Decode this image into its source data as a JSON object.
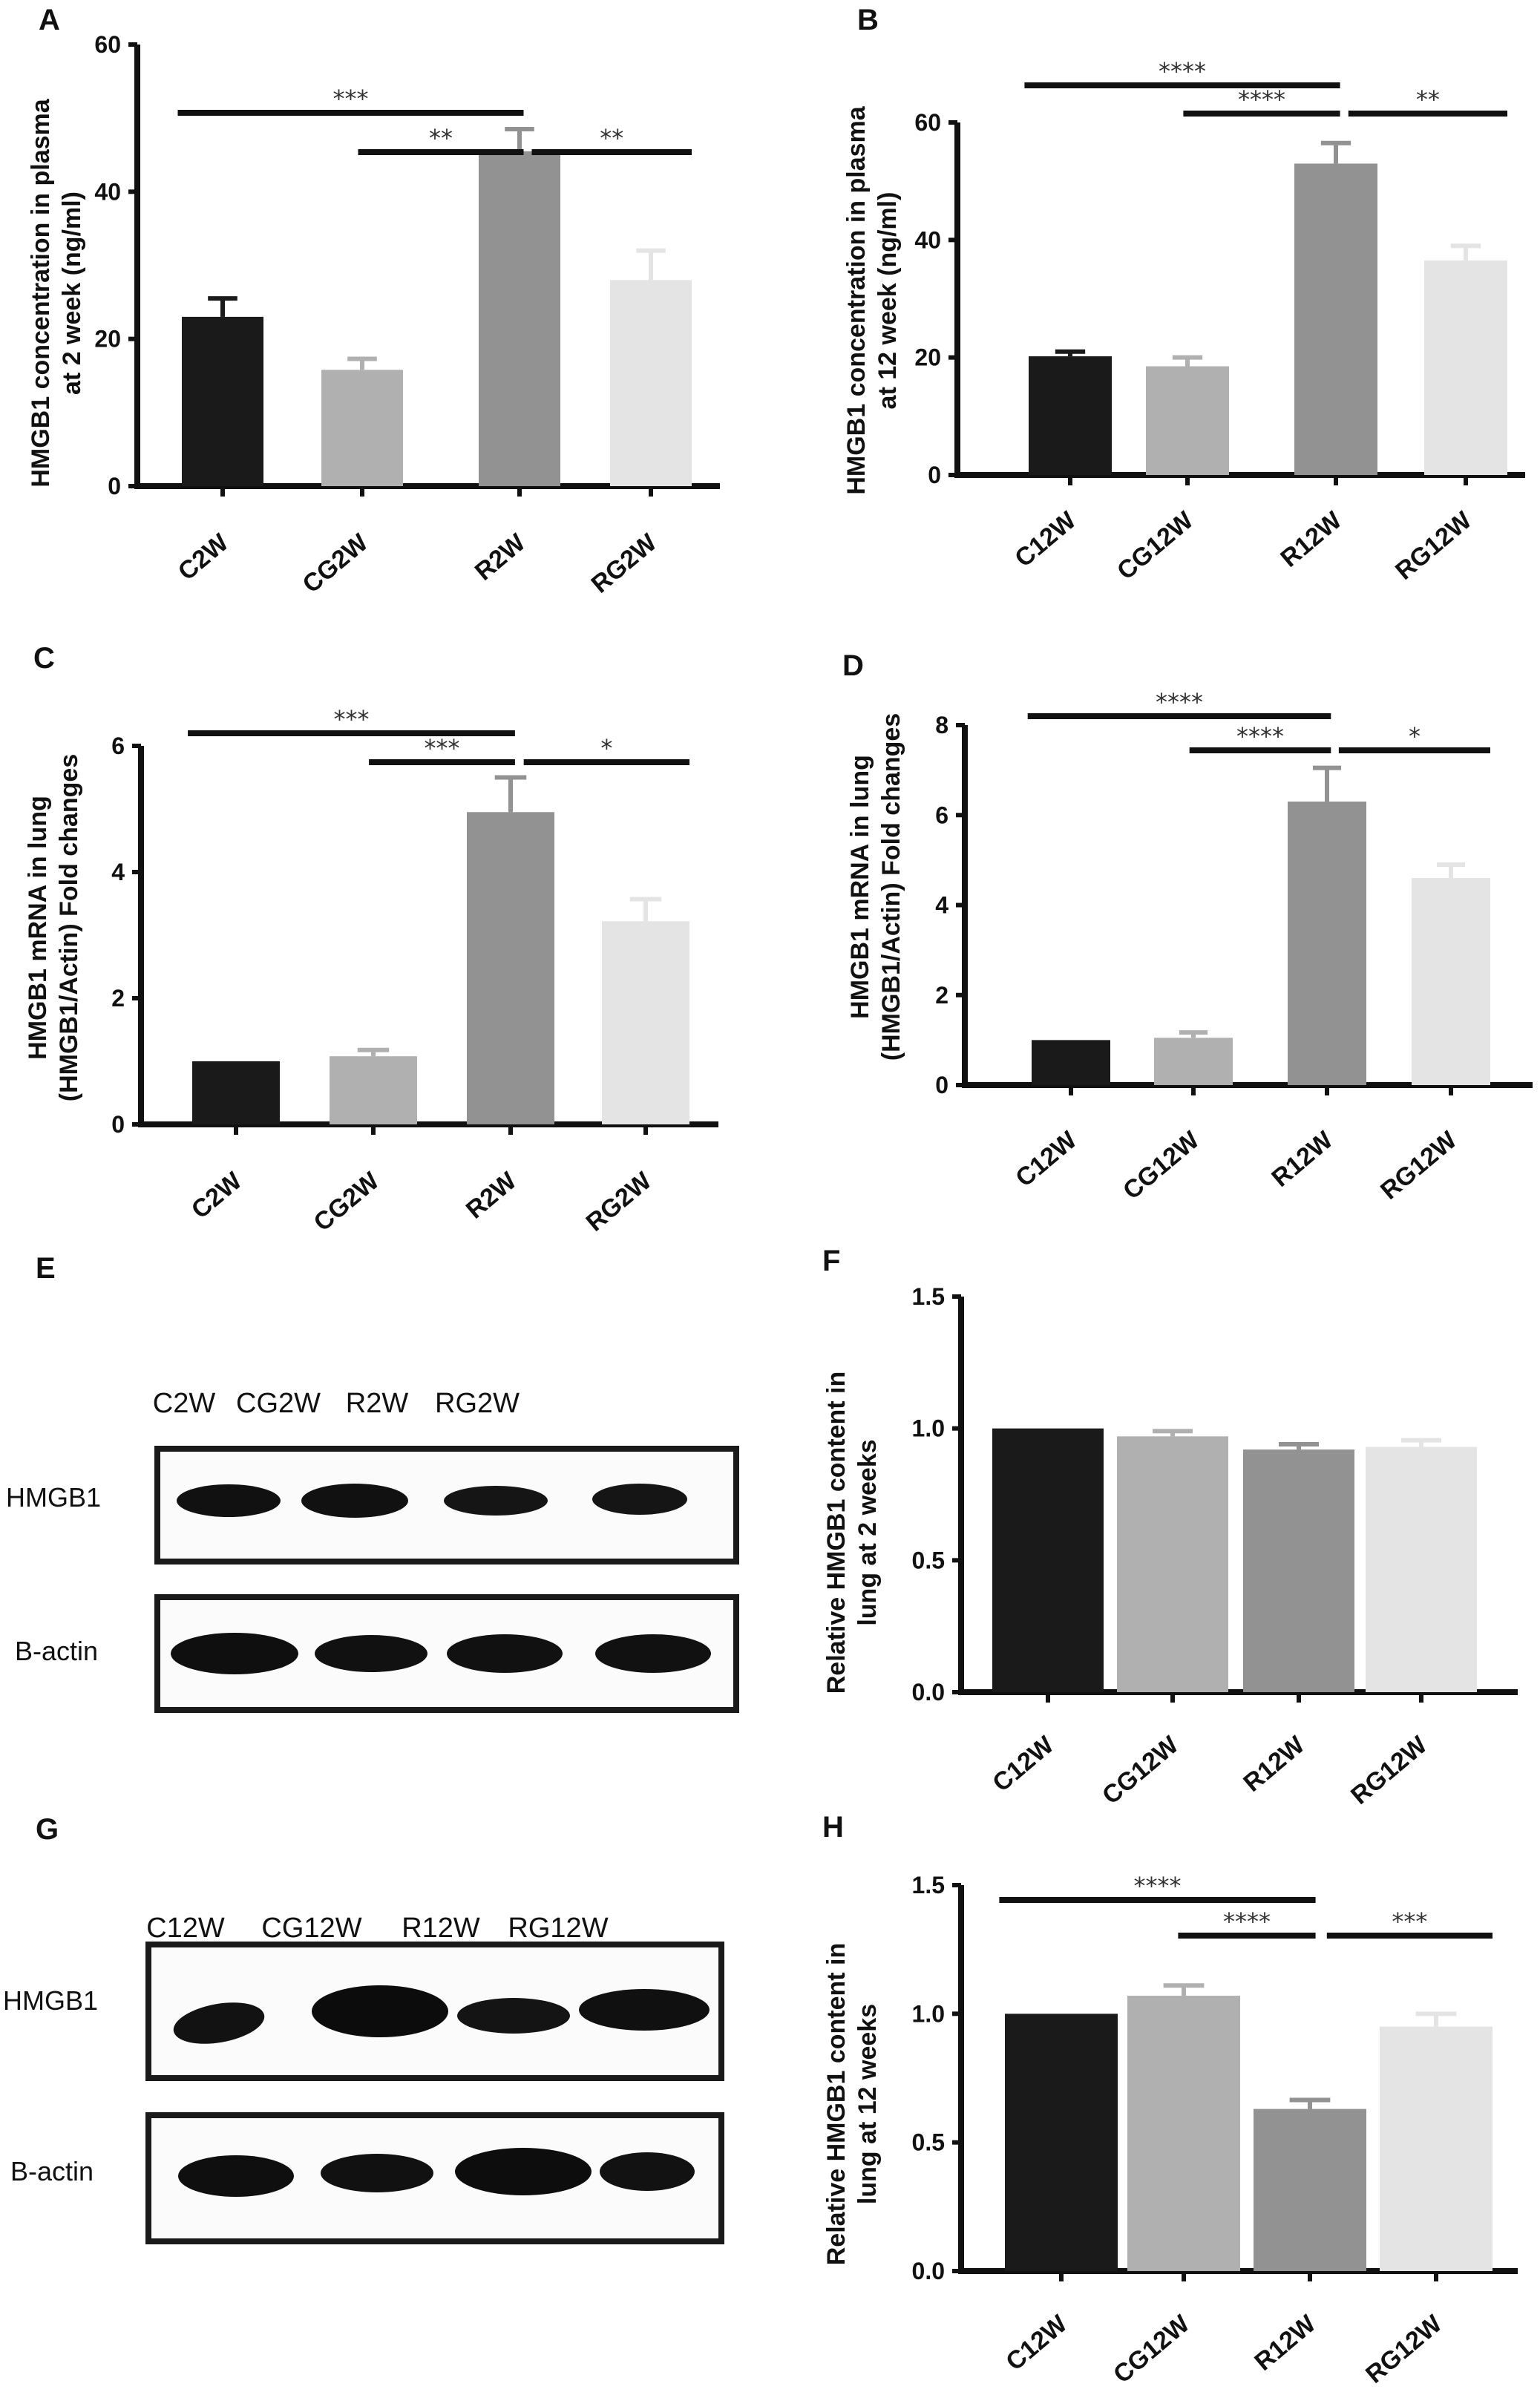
{
  "chart_data": [
    {
      "id": "A",
      "panel": "A",
      "type": "bar",
      "ylabel": [
        "HMGB1 concentration in plasma",
        "at 2 week (ng/ml)"
      ],
      "categories": [
        "C2W",
        "CG2W",
        "R2W",
        "RG2W"
      ],
      "values": [
        23,
        15.8,
        45.5,
        28
      ],
      "errors": [
        2.5,
        1.5,
        3,
        4
      ],
      "colors": [
        "#1a1a1a",
        "#b0b0b0",
        "#929292",
        "#e4e4e4"
      ],
      "ylim": [
        0,
        60
      ],
      "yticks": [
        0,
        20,
        40,
        60
      ],
      "ytick_labels": [
        "0",
        "20",
        "40",
        "60"
      ],
      "significance": [
        {
          "from": 0,
          "to": 2,
          "label": "***"
        },
        {
          "from": 1,
          "to": 2,
          "label": "**"
        },
        {
          "from": 2,
          "to": 3,
          "label": "**"
        }
      ]
    },
    {
      "id": "B",
      "panel": "B",
      "type": "bar",
      "ylabel": [
        "HMGB1 concentration in plasma",
        "at 12 week (ng/ml)"
      ],
      "categories": [
        "C12W",
        "CG12W",
        "R12W",
        "RG12W"
      ],
      "values": [
        20.2,
        18.5,
        53,
        36.5
      ],
      "errors": [
        0.8,
        1.5,
        3.5,
        2.5
      ],
      "colors": [
        "#1a1a1a",
        "#b0b0b0",
        "#929292",
        "#e4e4e4"
      ],
      "ylim": [
        0,
        60
      ],
      "yticks": [
        0,
        20,
        40,
        60
      ],
      "ytick_labels": [
        "0",
        "20",
        "40",
        "60"
      ],
      "significance": [
        {
          "from": 0,
          "to": 2,
          "label": "****"
        },
        {
          "from": 1,
          "to": 2,
          "label": "****"
        },
        {
          "from": 2,
          "to": 3,
          "label": "**"
        }
      ]
    },
    {
      "id": "C",
      "panel": "C",
      "type": "bar",
      "ylabel": [
        "HMGB1 mRNA in lung",
        "(HMGB1/Actin) Fold changes"
      ],
      "categories": [
        "C2W",
        "CG2W",
        "R2W",
        "RG2W"
      ],
      "values": [
        1,
        1.08,
        4.95,
        3.22
      ],
      "errors": [
        0,
        0.1,
        0.55,
        0.35
      ],
      "colors": [
        "#1a1a1a",
        "#b0b0b0",
        "#929292",
        "#e4e4e4"
      ],
      "ylim": [
        0,
        6
      ],
      "yticks": [
        0,
        2,
        4,
        6
      ],
      "ytick_labels": [
        "0",
        "2",
        "4",
        "6"
      ],
      "significance": [
        {
          "from": 0,
          "to": 2,
          "label": "***"
        },
        {
          "from": 1,
          "to": 2,
          "label": "***"
        },
        {
          "from": 2,
          "to": 3,
          "label": "*"
        }
      ]
    },
    {
      "id": "D",
      "panel": "D",
      "type": "bar",
      "ylabel": [
        "HMGB1 mRNA in lung",
        "(HMGB1/Actin) Fold changes"
      ],
      "categories": [
        "C12W",
        "CG12W",
        "R12W",
        "RG12W"
      ],
      "values": [
        1,
        1.05,
        6.3,
        4.6
      ],
      "errors": [
        0,
        0.12,
        0.75,
        0.3
      ],
      "colors": [
        "#1a1a1a",
        "#b0b0b0",
        "#929292",
        "#e4e4e4"
      ],
      "ylim": [
        0,
        8
      ],
      "yticks": [
        0,
        2,
        4,
        6,
        8
      ],
      "ytick_labels": [
        "0",
        "2",
        "4",
        "6",
        "8"
      ],
      "significance": [
        {
          "from": 0,
          "to": 2,
          "label": "****"
        },
        {
          "from": 1,
          "to": 2,
          "label": "****"
        },
        {
          "from": 2,
          "to": 3,
          "label": "*"
        }
      ]
    },
    {
      "id": "F",
      "panel": "F",
      "type": "bar",
      "ylabel": [
        "Relative HMGB1 content in",
        "lung at 2 weeks"
      ],
      "categories": [
        "C12W",
        "CG12W",
        "R12W",
        "RG12W"
      ],
      "values": [
        1.0,
        0.97,
        0.92,
        0.93
      ],
      "errors": [
        0,
        0.02,
        0.02,
        0.025
      ],
      "colors": [
        "#1a1a1a",
        "#b0b0b0",
        "#929292",
        "#e4e4e4"
      ],
      "ylim": [
        0,
        1.5
      ],
      "yticks": [
        0,
        0.5,
        1.0,
        1.5
      ],
      "ytick_labels": [
        "0.0",
        "0.5",
        "1.0",
        "1.5"
      ],
      "significance": []
    },
    {
      "id": "H",
      "panel": "H",
      "type": "bar",
      "ylabel": [
        "Relative HMGB1 content in",
        "lung  at 12 weeks"
      ],
      "categories": [
        "C12W",
        "CG12W",
        "R12W",
        "RG12W"
      ],
      "values": [
        1.0,
        1.07,
        0.63,
        0.95
      ],
      "errors": [
        0,
        0.04,
        0.035,
        0.05
      ],
      "colors": [
        "#1a1a1a",
        "#b0b0b0",
        "#929292",
        "#e4e4e4"
      ],
      "ylim": [
        0,
        1.5
      ],
      "yticks": [
        0,
        0.5,
        1.0,
        1.5
      ],
      "ytick_labels": [
        "0.0",
        "0.5",
        "1.0",
        "1.5"
      ],
      "significance": [
        {
          "from": 0,
          "to": 2,
          "label": "****"
        },
        {
          "from": 1,
          "to": 2,
          "label": "****"
        },
        {
          "from": 2,
          "to": 3,
          "label": "***"
        }
      ]
    }
  ],
  "blots": {
    "E": {
      "letter": "E",
      "lanes": [
        "C2W",
        "CG2W",
        "R2W",
        "RG2W"
      ],
      "rows": [
        "HMGB1",
        "B-actin"
      ]
    },
    "G": {
      "letter": "G",
      "lanes": [
        "C12W",
        "CG12W",
        "R12W",
        "RG12W"
      ],
      "rows": [
        "HMGB1",
        "B-actin"
      ]
    }
  }
}
